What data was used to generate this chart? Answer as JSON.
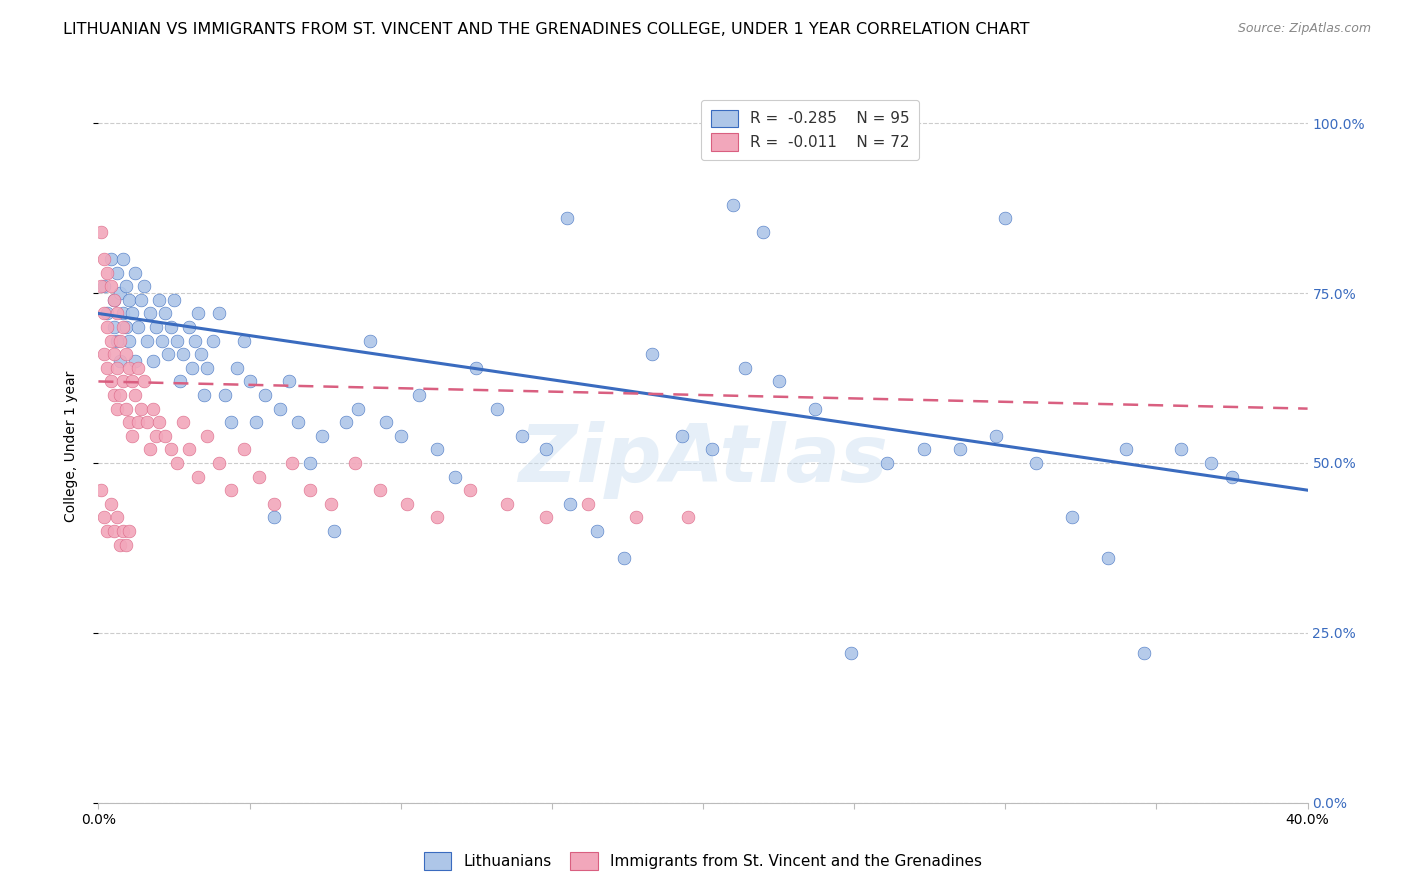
{
  "title": "LITHUANIAN VS IMMIGRANTS FROM ST. VINCENT AND THE GRENADINES COLLEGE, UNDER 1 YEAR CORRELATION CHART",
  "source": "Source: ZipAtlas.com",
  "ylabel": "College, Under 1 year",
  "ytick_labels": [
    "0.0%",
    "25.0%",
    "50.0%",
    "75.0%",
    "100.0%"
  ],
  "ytick_vals": [
    0.0,
    0.25,
    0.5,
    0.75,
    1.0
  ],
  "xmin": 0.0,
  "xmax": 0.4,
  "ymin": 0.0,
  "ymax": 1.05,
  "blue_R": "-0.285",
  "blue_N": "95",
  "pink_R": "-0.011",
  "pink_N": "72",
  "blue_color": "#aec6e8",
  "pink_color": "#f2a7bb",
  "blue_line_color": "#3a6bbf",
  "pink_line_color": "#d95f80",
  "blue_scatter_x": [
    0.002,
    0.003,
    0.004,
    0.005,
    0.005,
    0.006,
    0.006,
    0.007,
    0.007,
    0.008,
    0.008,
    0.009,
    0.009,
    0.01,
    0.01,
    0.011,
    0.012,
    0.012,
    0.013,
    0.014,
    0.015,
    0.016,
    0.017,
    0.018,
    0.019,
    0.02,
    0.021,
    0.022,
    0.023,
    0.024,
    0.025,
    0.026,
    0.027,
    0.028,
    0.03,
    0.031,
    0.032,
    0.033,
    0.034,
    0.035,
    0.036,
    0.038,
    0.04,
    0.042,
    0.044,
    0.046,
    0.048,
    0.05,
    0.052,
    0.055,
    0.058,
    0.06,
    0.063,
    0.066,
    0.07,
    0.074,
    0.078,
    0.082,
    0.086,
    0.09,
    0.095,
    0.1,
    0.106,
    0.112,
    0.118,
    0.125,
    0.132,
    0.14,
    0.148,
    0.156,
    0.165,
    0.174,
    0.183,
    0.193,
    0.203,
    0.214,
    0.225,
    0.237,
    0.249,
    0.261,
    0.273,
    0.285,
    0.297,
    0.31,
    0.322,
    0.334,
    0.346,
    0.358,
    0.368,
    0.375,
    0.21,
    0.22,
    0.155,
    0.3,
    0.34
  ],
  "blue_scatter_y": [
    0.76,
    0.72,
    0.8,
    0.74,
    0.7,
    0.78,
    0.68,
    0.75,
    0.65,
    0.72,
    0.8,
    0.7,
    0.76,
    0.74,
    0.68,
    0.72,
    0.78,
    0.65,
    0.7,
    0.74,
    0.76,
    0.68,
    0.72,
    0.65,
    0.7,
    0.74,
    0.68,
    0.72,
    0.66,
    0.7,
    0.74,
    0.68,
    0.62,
    0.66,
    0.7,
    0.64,
    0.68,
    0.72,
    0.66,
    0.6,
    0.64,
    0.68,
    0.72,
    0.6,
    0.56,
    0.64,
    0.68,
    0.62,
    0.56,
    0.6,
    0.42,
    0.58,
    0.62,
    0.56,
    0.5,
    0.54,
    0.4,
    0.56,
    0.58,
    0.68,
    0.56,
    0.54,
    0.6,
    0.52,
    0.48,
    0.64,
    0.58,
    0.54,
    0.52,
    0.44,
    0.4,
    0.36,
    0.66,
    0.54,
    0.52,
    0.64,
    0.62,
    0.58,
    0.22,
    0.5,
    0.52,
    0.52,
    0.54,
    0.5,
    0.42,
    0.36,
    0.22,
    0.52,
    0.5,
    0.48,
    0.88,
    0.84,
    0.86,
    0.86,
    0.52
  ],
  "pink_scatter_x": [
    0.001,
    0.001,
    0.002,
    0.002,
    0.002,
    0.003,
    0.003,
    0.003,
    0.004,
    0.004,
    0.004,
    0.005,
    0.005,
    0.005,
    0.006,
    0.006,
    0.006,
    0.007,
    0.007,
    0.008,
    0.008,
    0.009,
    0.009,
    0.01,
    0.01,
    0.011,
    0.011,
    0.012,
    0.013,
    0.013,
    0.014,
    0.015,
    0.016,
    0.017,
    0.018,
    0.019,
    0.02,
    0.022,
    0.024,
    0.026,
    0.028,
    0.03,
    0.033,
    0.036,
    0.04,
    0.044,
    0.048,
    0.053,
    0.058,
    0.064,
    0.07,
    0.077,
    0.085,
    0.093,
    0.102,
    0.112,
    0.123,
    0.135,
    0.148,
    0.162,
    0.178,
    0.195,
    0.001,
    0.002,
    0.003,
    0.004,
    0.005,
    0.006,
    0.007,
    0.008,
    0.009,
    0.01
  ],
  "pink_scatter_y": [
    0.84,
    0.76,
    0.8,
    0.72,
    0.66,
    0.78,
    0.7,
    0.64,
    0.76,
    0.68,
    0.62,
    0.74,
    0.66,
    0.6,
    0.72,
    0.64,
    0.58,
    0.68,
    0.6,
    0.7,
    0.62,
    0.66,
    0.58,
    0.64,
    0.56,
    0.62,
    0.54,
    0.6,
    0.64,
    0.56,
    0.58,
    0.62,
    0.56,
    0.52,
    0.58,
    0.54,
    0.56,
    0.54,
    0.52,
    0.5,
    0.56,
    0.52,
    0.48,
    0.54,
    0.5,
    0.46,
    0.52,
    0.48,
    0.44,
    0.5,
    0.46,
    0.44,
    0.5,
    0.46,
    0.44,
    0.42,
    0.46,
    0.44,
    0.42,
    0.44,
    0.42,
    0.42,
    0.46,
    0.42,
    0.4,
    0.44,
    0.4,
    0.42,
    0.38,
    0.4,
    0.38,
    0.4
  ],
  "blue_line_x": [
    0.0,
    0.4
  ],
  "blue_line_y": [
    0.72,
    0.46
  ],
  "pink_line_x": [
    0.0,
    0.4
  ],
  "pink_line_y": [
    0.62,
    0.58
  ],
  "watermark": "ZipAtlas",
  "grid_color": "#cccccc",
  "background_color": "#ffffff",
  "title_fontsize": 11.5,
  "source_fontsize": 9,
  "legend_fontsize": 11,
  "axis_label_fontsize": 10,
  "tick_fontsize": 10
}
